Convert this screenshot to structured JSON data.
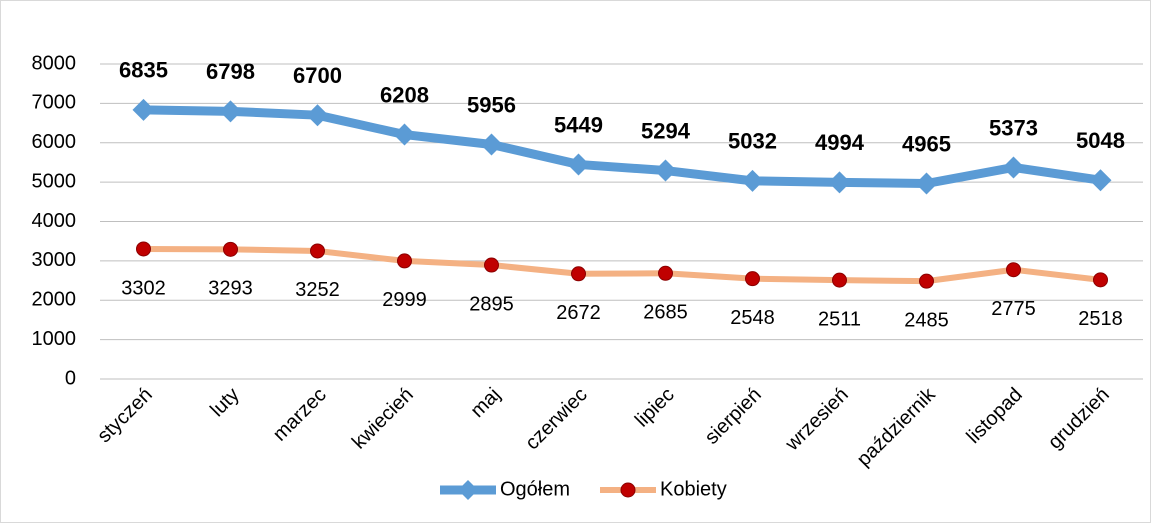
{
  "chart_data": {
    "type": "line",
    "categories": [
      "styczeń",
      "luty",
      "marzec",
      "kwiecień",
      "maj",
      "czerwiec",
      "lipiec",
      "sierpień",
      "wrzesień",
      "październik",
      "listopad",
      "grudzień"
    ],
    "series": [
      {
        "name": "Ogółem",
        "color": "#5b9bd5",
        "values": [
          6835,
          6798,
          6700,
          6208,
          5956,
          5449,
          5294,
          5032,
          4994,
          4965,
          5373,
          5048
        ]
      },
      {
        "name": "Kobiety",
        "color": "#f4b183",
        "marker_color": "#c00000",
        "values": [
          3302,
          3293,
          3252,
          2999,
          2895,
          2672,
          2685,
          2548,
          2511,
          2485,
          2775,
          2518
        ]
      }
    ],
    "ylim": [
      0,
      8000
    ],
    "yticks": [
      0,
      1000,
      2000,
      3000,
      4000,
      5000,
      6000,
      7000,
      8000
    ],
    "grid": true,
    "legend": "bottom"
  }
}
